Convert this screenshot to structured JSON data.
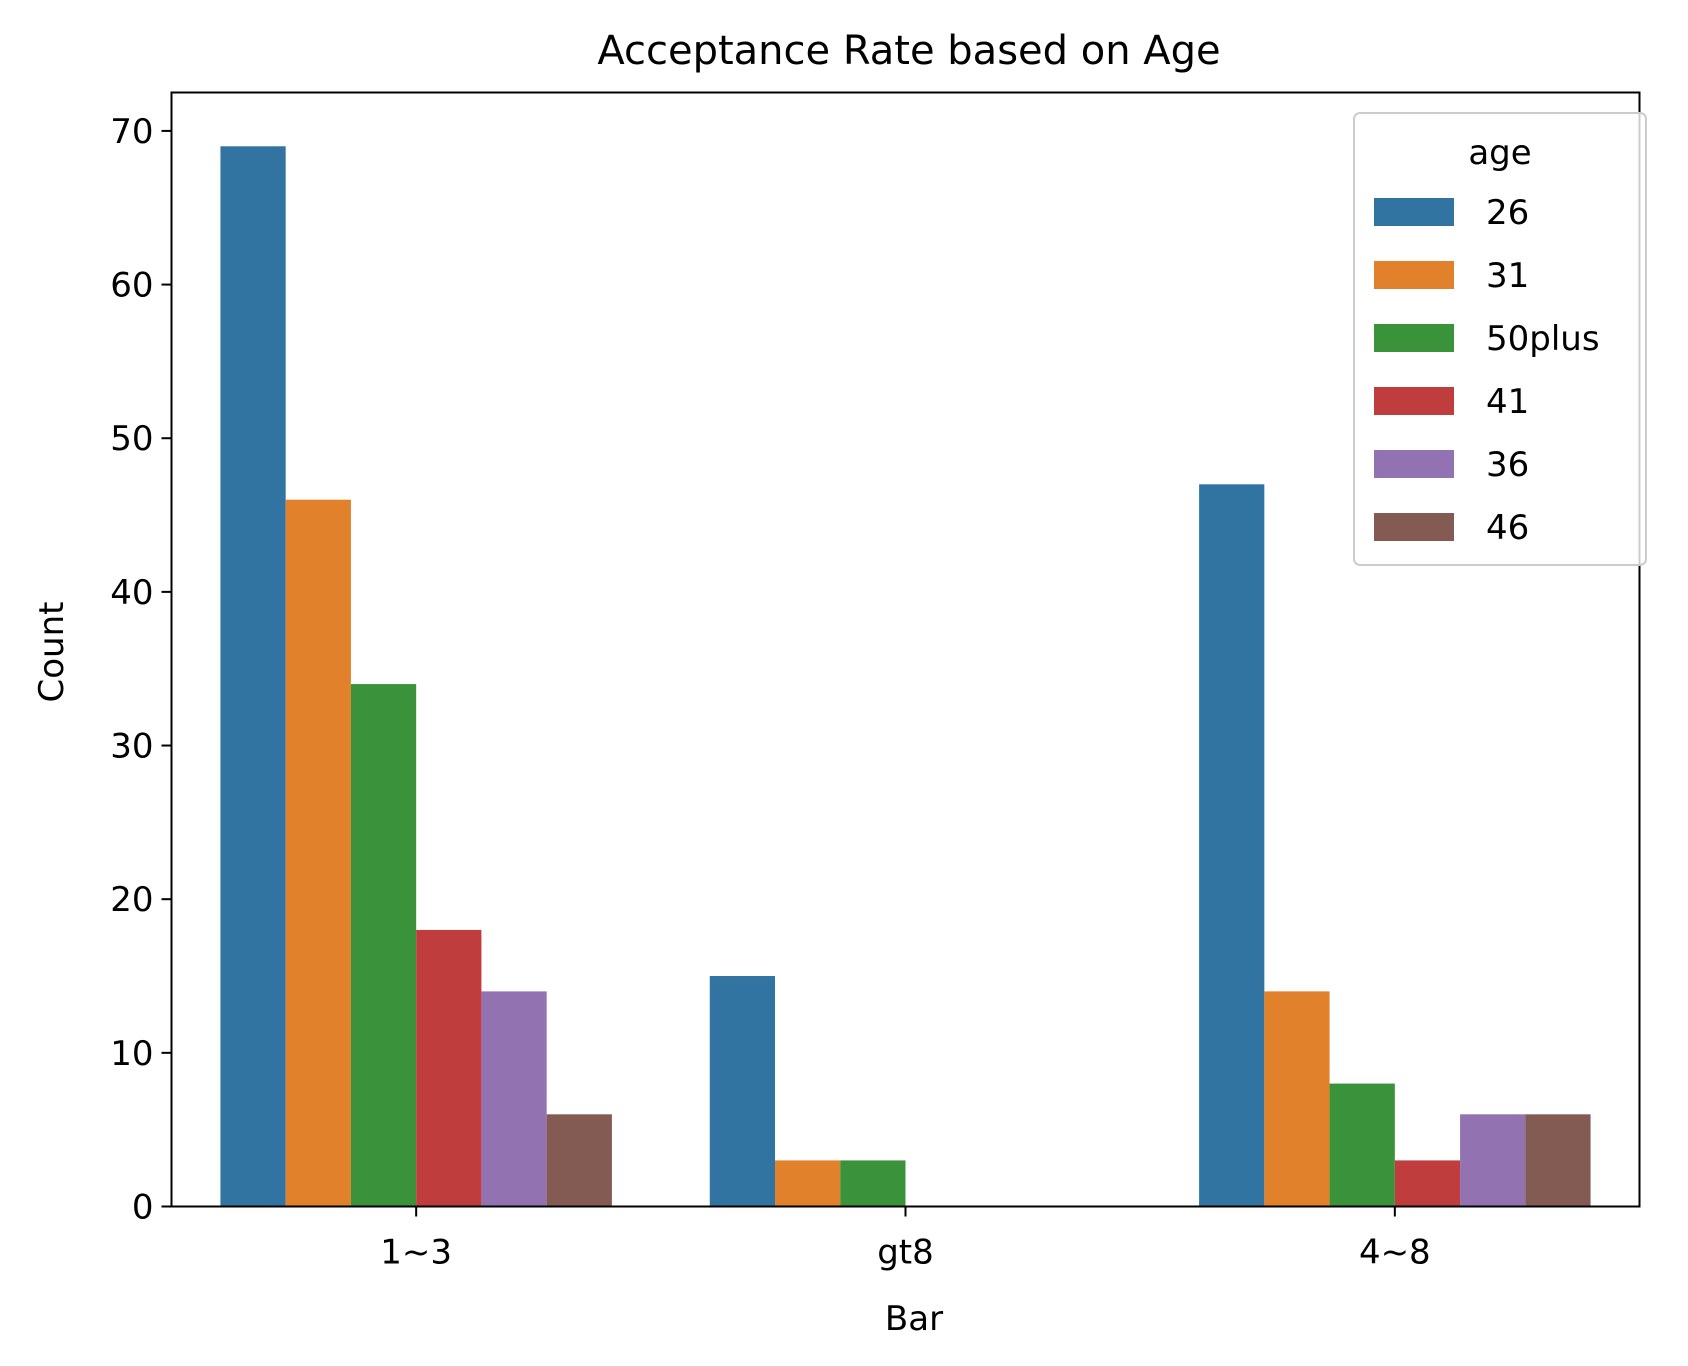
{
  "chart_data": {
    "type": "bar",
    "title": "Acceptance Rate based on Age",
    "xlabel": "Bar",
    "ylabel": "Count",
    "categories": [
      "1~3",
      "gt8",
      "4~8"
    ],
    "ylim": [
      0,
      72.5
    ],
    "yticks": [
      0,
      10,
      20,
      30,
      40,
      50,
      60,
      70
    ],
    "grid": false,
    "legend": {
      "title": "age",
      "placement": "top-right"
    },
    "series": [
      {
        "name": "26",
        "color": "#3274a1",
        "values": [
          69,
          15,
          47
        ]
      },
      {
        "name": "31",
        "color": "#e1812c",
        "values": [
          46,
          3,
          14
        ]
      },
      {
        "name": "50plus",
        "color": "#3a923a",
        "values": [
          34,
          3,
          8
        ]
      },
      {
        "name": "41",
        "color": "#c03d3e",
        "values": [
          18,
          0,
          3
        ]
      },
      {
        "name": "36",
        "color": "#9372b2",
        "values": [
          14,
          0,
          6
        ]
      },
      {
        "name": "46",
        "color": "#845b53",
        "values": [
          6,
          0,
          6
        ]
      }
    ]
  }
}
